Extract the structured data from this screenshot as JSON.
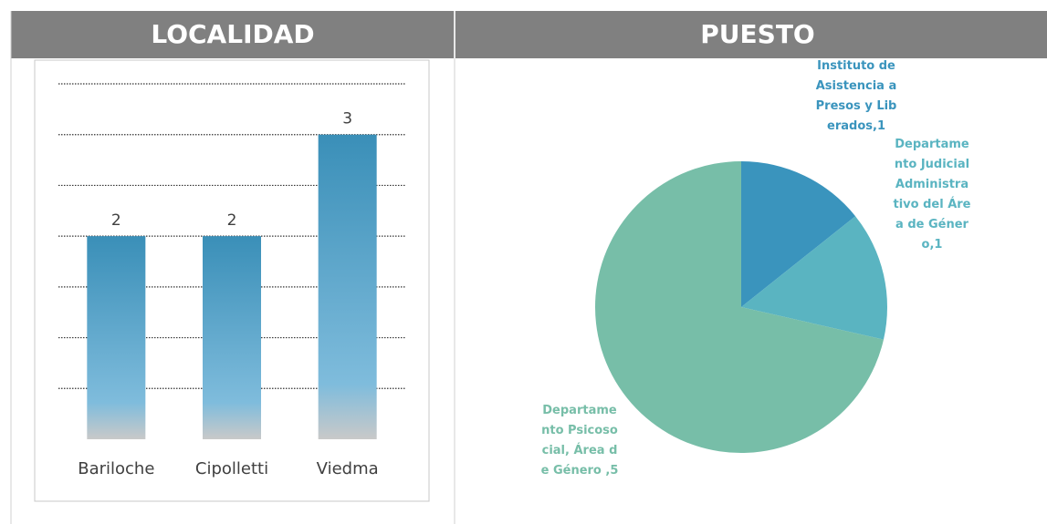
{
  "panels": [
    {
      "header": "LOCALIDAD",
      "chart_data": {
        "type": "bar",
        "categories": [
          "Bariloche",
          "Cipolletti",
          "Viedma"
        ],
        "values": [
          2,
          2,
          3
        ],
        "ylim": [
          0,
          3.5
        ],
        "yticks": [
          0.5,
          1,
          1.5,
          2,
          2.5,
          3,
          3.5
        ],
        "grid": true,
        "colors": [
          "#3a8fb8",
          "#7fbcdc",
          "#c9c9c9"
        ]
      }
    },
    {
      "header": "PUESTO",
      "chart_data": {
        "type": "pie",
        "categories": [
          "Instituto de Asistencia a Presos y Liberados",
          "Departamento Judicial Administrativo del Área de Género",
          "Departamento Psicosocial, Área de Género"
        ],
        "values": [
          1,
          1,
          5
        ],
        "value_labels": [
          ",1",
          ",1",
          " ,5"
        ],
        "colors": [
          "#3a94bd",
          "#5ab4c1",
          "#77bea8"
        ]
      }
    }
  ]
}
